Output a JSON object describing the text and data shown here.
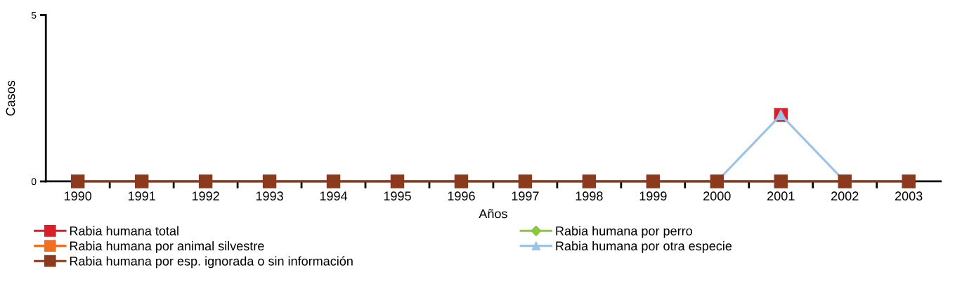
{
  "chart_data": {
    "type": "line",
    "xlabel": "Años",
    "ylabel": "Casos",
    "categories": [
      "1990",
      "1991",
      "1992",
      "1993",
      "1994",
      "1995",
      "1996",
      "1997",
      "1998",
      "1999",
      "2000",
      "2001",
      "2002",
      "2003"
    ],
    "ylim": [
      0,
      5
    ],
    "yticks": [
      0,
      5
    ],
    "grid": false,
    "legend": "bottom",
    "line_style": "solid",
    "series": [
      {
        "name": "Rabia humana total",
        "color": "#d7202a",
        "marker": "square",
        "values": [
          null,
          null,
          null,
          null,
          null,
          null,
          null,
          null,
          null,
          null,
          null,
          2,
          null,
          null
        ]
      },
      {
        "name": "Rabia humana por perro",
        "color": "#8dc63f",
        "marker": "diamond",
        "values": [
          null,
          null,
          null,
          null,
          null,
          null,
          null,
          null,
          null,
          null,
          null,
          null,
          null,
          null
        ]
      },
      {
        "name": "Rabia humana por animal silvestre",
        "color": "#f26f21",
        "marker": "square",
        "values": [
          null,
          null,
          null,
          null,
          null,
          null,
          null,
          null,
          null,
          null,
          null,
          null,
          null,
          null
        ]
      },
      {
        "name": "Rabia humana por otra especie",
        "color": "#9cc3e5",
        "marker": "triangle",
        "values": [
          null,
          null,
          null,
          null,
          null,
          null,
          null,
          null,
          null,
          null,
          0,
          2,
          0,
          null
        ]
      },
      {
        "name": "Rabia humana por esp. ignorada o sin información",
        "color": "#8b3a1e",
        "marker": "square",
        "values": [
          0,
          0,
          0,
          0,
          0,
          0,
          0,
          0,
          0,
          0,
          0,
          0,
          0,
          0
        ]
      }
    ]
  }
}
